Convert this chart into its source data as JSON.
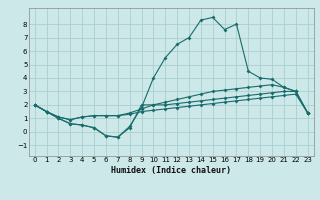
{
  "xlabel": "Humidex (Indice chaleur)",
  "ylabel": "",
  "background_color": "#cce8e8",
  "grid_color": "#aacece",
  "line_color": "#1a6b6b",
  "xlim": [
    -0.5,
    23.5
  ],
  "ylim": [
    -1.8,
    9.2
  ],
  "xticks": [
    0,
    1,
    2,
    3,
    4,
    5,
    6,
    7,
    8,
    9,
    10,
    11,
    12,
    13,
    14,
    15,
    16,
    17,
    18,
    19,
    20,
    21,
    22,
    23
  ],
  "yticks": [
    -1,
    0,
    1,
    2,
    3,
    4,
    5,
    6,
    7,
    8
  ],
  "line1_x": [
    0,
    1,
    2,
    3,
    4,
    5,
    6,
    7,
    8,
    9,
    10,
    11,
    12,
    13,
    14,
    15,
    16,
    17,
    18,
    19,
    20,
    21,
    22,
    23
  ],
  "line1_y": [
    2.0,
    1.5,
    1.0,
    0.6,
    0.5,
    0.3,
    -0.3,
    -0.4,
    0.3,
    2.0,
    2.0,
    2.0,
    2.1,
    2.2,
    2.3,
    2.4,
    2.5,
    2.6,
    2.7,
    2.8,
    2.9,
    3.0,
    3.0,
    1.4
  ],
  "line2_x": [
    0,
    1,
    2,
    3,
    4,
    5,
    6,
    7,
    8,
    9,
    10,
    11,
    12,
    13,
    14,
    15,
    16,
    17,
    18,
    19,
    20,
    21,
    22,
    23
  ],
  "line2_y": [
    2.0,
    1.5,
    1.0,
    0.6,
    0.5,
    0.3,
    -0.3,
    -0.4,
    0.4,
    1.8,
    4.0,
    5.5,
    6.5,
    7.0,
    8.3,
    8.5,
    7.6,
    8.0,
    4.5,
    4.0,
    3.9,
    3.3,
    3.0,
    1.4
  ],
  "line3_x": [
    0,
    1,
    2,
    3,
    4,
    5,
    6,
    7,
    8,
    9,
    10,
    11,
    12,
    13,
    14,
    15,
    16,
    17,
    18,
    19,
    20,
    21,
    22,
    23
  ],
  "line3_y": [
    2.0,
    1.5,
    1.1,
    0.9,
    1.1,
    1.2,
    1.2,
    1.2,
    1.3,
    1.5,
    1.6,
    1.7,
    1.8,
    1.9,
    2.0,
    2.1,
    2.2,
    2.3,
    2.4,
    2.5,
    2.6,
    2.7,
    2.8,
    1.4
  ],
  "line4_x": [
    0,
    1,
    2,
    3,
    4,
    5,
    6,
    7,
    8,
    9,
    10,
    11,
    12,
    13,
    14,
    15,
    16,
    17,
    18,
    19,
    20,
    21,
    22,
    23
  ],
  "line4_y": [
    2.0,
    1.5,
    1.1,
    0.9,
    1.1,
    1.2,
    1.2,
    1.2,
    1.4,
    1.7,
    2.0,
    2.2,
    2.4,
    2.6,
    2.8,
    3.0,
    3.1,
    3.2,
    3.3,
    3.4,
    3.5,
    3.3,
    3.0,
    1.4
  ],
  "figsize": [
    3.2,
    2.0
  ],
  "dpi": 100
}
